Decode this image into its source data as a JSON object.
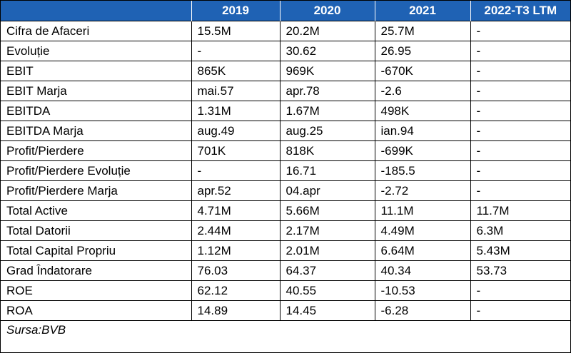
{
  "header": {
    "cols": [
      "",
      "2019",
      "2020",
      "2021",
      "2022-T3 LTM"
    ]
  },
  "rows": [
    [
      "Cifra de Afaceri",
      "15.5M",
      "20.2M",
      "25.7M",
      "-"
    ],
    [
      "Evoluție",
      "-",
      "30.62",
      "26.95",
      "-"
    ],
    [
      "EBIT",
      "865K",
      "969K",
      "-670K",
      "-"
    ],
    [
      "EBIT Marja",
      "mai.57",
      "apr.78",
      "-2.6",
      "-"
    ],
    [
      "EBITDA",
      "1.31M",
      "1.67M",
      "498K",
      "-"
    ],
    [
      "EBITDA Marja",
      "aug.49",
      "aug.25",
      "ian.94",
      "-"
    ],
    [
      "Profit/Pierdere",
      "701K",
      "818K",
      "-699K",
      "-"
    ],
    [
      "Profit/Pierdere Evoluție",
      "-",
      "16.71",
      "-185.5",
      "-"
    ],
    [
      "Profit/Pierdere Marja",
      "apr.52",
      "04.apr",
      "-2.72",
      "-"
    ],
    [
      "Total Active",
      "4.71M",
      "5.66M",
      "11.1M",
      "11.7M"
    ],
    [
      "Total Datorii",
      "2.44M",
      "2.17M",
      "4.49M",
      "6.3M"
    ],
    [
      "Total Capital Propriu",
      "1.12M",
      "2.01M",
      "6.64M",
      "5.43M"
    ],
    [
      "Grad Îndatorare",
      "76.03",
      "64.37",
      "40.34",
      "53.73"
    ],
    [
      "ROE",
      "62.12",
      "40.55",
      "-10.53",
      "-"
    ],
    [
      "ROA",
      "14.89",
      "14.45",
      "-6.28",
      "-"
    ]
  ],
  "footer": {
    "source": "Sursa:BVB"
  },
  "colors": {
    "header_bg": "#1f62b4",
    "header_text": "#ffffff"
  }
}
